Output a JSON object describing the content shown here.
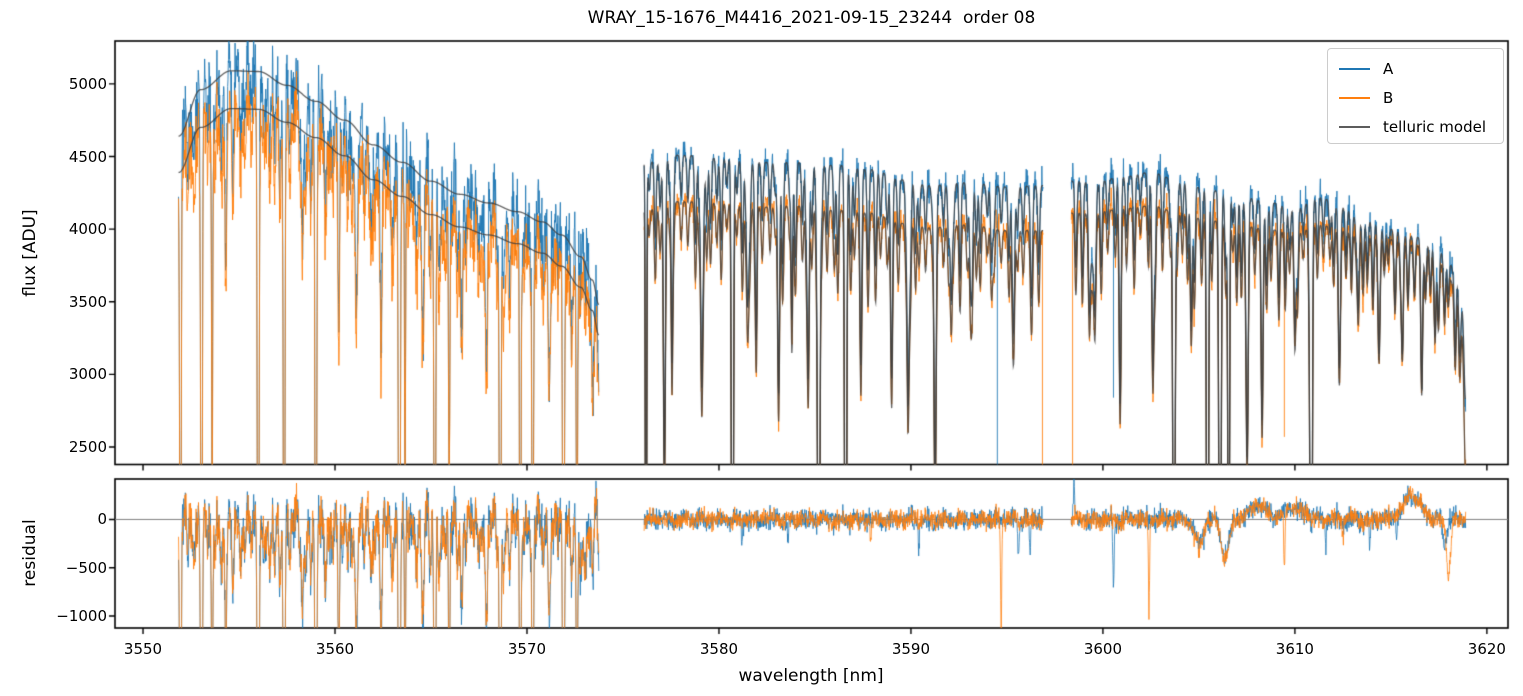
{
  "title": "WRAY_15-1676_M4416_2021-09-15_23244  order 08",
  "legend": {
    "entries": [
      {
        "label": "A",
        "color": "#1f77b4"
      },
      {
        "label": "B",
        "color": "#ff7f0e"
      },
      {
        "label": "telluric model",
        "color": "#5c5c5c"
      }
    ]
  },
  "chart_data": {
    "type": "line",
    "title": "WRAY_15-1676_M4416_2021-09-15_23244  order 08",
    "xlabel": "wavelength [nm]",
    "x_unit": "nm",
    "flux_unit": "ADU",
    "xlim": [
      3548.54,
      3621.1
    ],
    "xticks": [
      3550,
      3560,
      3570,
      3580,
      3590,
      3600,
      3610,
      3620
    ],
    "panels": [
      {
        "ylabel": "flux [ADU]",
        "ylim": [
          2380,
          5295
        ],
        "yticks": [
          2500,
          3000,
          3500,
          4000,
          4500,
          5000
        ]
      },
      {
        "ylabel": "residual",
        "ylim": [
          -1124,
          419
        ],
        "yticks": [
          0,
          -500,
          -1000
        ],
        "zero_line": true
      }
    ],
    "series": [
      {
        "name": "A",
        "color": "#1f77b4",
        "alpha": 0.88,
        "lw": 1.0
      },
      {
        "name": "B",
        "color": "#ff7f0e",
        "alpha": 0.88,
        "lw": 1.0
      },
      {
        "name": "telluric model",
        "color": "#3c3c3c",
        "alpha": 0.8,
        "lw": 1.3
      }
    ],
    "gaps": [
      [
        3573.75,
        3576.1
      ],
      [
        3596.9,
        3598.35
      ]
    ],
    "seed": 1337,
    "x_step": 0.016,
    "segments": [
      {
        "x_start": 3551.85,
        "x_end": 3573.75,
        "model_has_lines": false,
        "noise_A": 125,
        "noise_B": 112,
        "wiggle": [
          [
            1.15,
            112
          ],
          [
            0.52,
            68
          ],
          [
            0.23,
            40
          ]
        ],
        "env_A": [
          [
            3551.85,
            4640
          ],
          [
            3553.0,
            4960
          ],
          [
            3554.6,
            5090
          ],
          [
            3556.0,
            5085
          ],
          [
            3557.5,
            4990
          ],
          [
            3559.0,
            4880
          ],
          [
            3560.5,
            4750
          ],
          [
            3562.0,
            4580
          ],
          [
            3563.5,
            4460
          ],
          [
            3565.0,
            4330
          ],
          [
            3566.5,
            4240
          ],
          [
            3568.0,
            4180
          ],
          [
            3569.5,
            4120
          ],
          [
            3570.8,
            4050
          ],
          [
            3571.8,
            3960
          ],
          [
            3572.8,
            3810
          ],
          [
            3573.4,
            3650
          ],
          [
            3573.75,
            3480
          ]
        ],
        "env_B": [
          [
            3551.85,
            4390
          ],
          [
            3553.0,
            4700
          ],
          [
            3554.6,
            4830
          ],
          [
            3556.0,
            4825
          ],
          [
            3557.5,
            4735
          ],
          [
            3559.0,
            4630
          ],
          [
            3560.5,
            4505
          ],
          [
            3562.0,
            4340
          ],
          [
            3563.5,
            4225
          ],
          [
            3565.0,
            4100
          ],
          [
            3566.5,
            4015
          ],
          [
            3568.0,
            3960
          ],
          [
            3569.5,
            3900
          ],
          [
            3570.8,
            3835
          ],
          [
            3571.8,
            3745
          ],
          [
            3572.8,
            3600
          ],
          [
            3573.4,
            3440
          ],
          [
            3573.75,
            3270
          ]
        ],
        "lines": [
          [
            3551.95,
            1.0,
            0.035
          ],
          [
            3553.05,
            1.0,
            0.035
          ],
          [
            3553.6,
            0.55,
            0.03
          ],
          [
            3554.3,
            0.15,
            0.05
          ],
          [
            3556.0,
            1.0,
            0.04
          ],
          [
            3557.35,
            1.0,
            0.035
          ],
          [
            3558.3,
            0.16,
            0.05
          ],
          [
            3559.0,
            1.0,
            0.04
          ],
          [
            3560.2,
            0.3,
            0.04
          ],
          [
            3561.1,
            0.22,
            0.05
          ],
          [
            3562.4,
            0.18,
            0.05
          ],
          [
            3563.35,
            1.0,
            0.04
          ],
          [
            3563.65,
            0.5,
            0.03
          ],
          [
            3564.6,
            0.2,
            0.05
          ],
          [
            3565.2,
            1.0,
            0.04
          ],
          [
            3565.95,
            0.5,
            0.035
          ],
          [
            3566.6,
            0.18,
            0.05
          ],
          [
            3567.9,
            0.15,
            0.05
          ],
          [
            3568.6,
            1.0,
            0.04
          ],
          [
            3569.65,
            1.0,
            0.035
          ],
          [
            3570.3,
            0.85,
            0.035
          ],
          [
            3571.15,
            0.2,
            0.05
          ],
          [
            3571.9,
            1.0,
            0.04
          ],
          [
            3572.6,
            0.6,
            0.035
          ]
        ],
        "forest": {
          "spacing": 0.34,
          "dmin": 0.03,
          "dmax": 0.15,
          "w": 0.05
        }
      },
      {
        "x_start": 3576.1,
        "x_end": 3596.9,
        "model_has_lines": true,
        "noise_A": 52,
        "noise_B": 48,
        "wiggle": [
          [
            0.9,
            22
          ]
        ],
        "env_A": [
          [
            3576.1,
            4460
          ],
          [
            3578.0,
            4510
          ],
          [
            3580.0,
            4490
          ],
          [
            3582.0,
            4460
          ],
          [
            3584.0,
            4460
          ],
          [
            3586.0,
            4440
          ],
          [
            3588.0,
            4410
          ],
          [
            3589.5,
            4340
          ],
          [
            3591.0,
            4300
          ],
          [
            3593.0,
            4320
          ],
          [
            3595.0,
            4290
          ],
          [
            3596.9,
            4300
          ]
        ],
        "env_B": [
          [
            3576.1,
            4130
          ],
          [
            3578.0,
            4190
          ],
          [
            3580.0,
            4180
          ],
          [
            3582.0,
            4150
          ],
          [
            3584.0,
            4160
          ],
          [
            3586.0,
            4130
          ],
          [
            3588.0,
            4110
          ],
          [
            3589.5,
            4040
          ],
          [
            3591.0,
            4010
          ],
          [
            3593.0,
            4030
          ],
          [
            3595.0,
            3990
          ],
          [
            3596.9,
            3990
          ]
        ],
        "lines": [
          [
            3576.2,
            1.0,
            0.03
          ],
          [
            3577.15,
            0.34,
            0.05
          ],
          [
            3577.55,
            0.28,
            0.04
          ],
          [
            3579.1,
            0.32,
            0.05
          ],
          [
            3580.7,
            1.0,
            0.045
          ],
          [
            3581.5,
            0.2,
            0.05
          ],
          [
            3581.95,
            0.22,
            0.04
          ],
          [
            3583.1,
            0.28,
            0.05
          ],
          [
            3583.8,
            0.24,
            0.04
          ],
          [
            3584.65,
            0.32,
            0.05
          ],
          [
            3585.2,
            1.0,
            0.05
          ],
          [
            3586.6,
            1.0,
            0.045
          ],
          [
            3587.4,
            0.18,
            0.05
          ],
          [
            3589.0,
            0.27,
            0.05
          ],
          [
            3589.85,
            0.34,
            0.05
          ],
          [
            3591.25,
            0.45,
            0.05
          ],
          [
            3592.1,
            0.18,
            0.05
          ],
          [
            3593.1,
            0.14,
            0.05
          ],
          [
            3594.2,
            0.12,
            0.05
          ],
          [
            3595.3,
            0.14,
            0.05
          ],
          [
            3596.3,
            0.12,
            0.05
          ]
        ],
        "forest": {
          "spacing": 0.3,
          "dmin": 0.04,
          "dmax": 0.16,
          "w": 0.05
        }
      },
      {
        "x_start": 3598.35,
        "x_end": 3618.9,
        "model_has_lines": true,
        "noise_A": 52,
        "noise_B": 48,
        "wiggle": [
          [
            0.9,
            22
          ]
        ],
        "env_A": [
          [
            3598.35,
            4330
          ],
          [
            3599.8,
            4330
          ],
          [
            3601.0,
            4360
          ],
          [
            3602.5,
            4390
          ],
          [
            3604.0,
            4330
          ],
          [
            3605.5,
            4270
          ],
          [
            3607.0,
            4230
          ],
          [
            3608.5,
            4190
          ],
          [
            3610.0,
            4140
          ],
          [
            3611.3,
            4220
          ],
          [
            3612.5,
            4150
          ],
          [
            3613.5,
            4070
          ],
          [
            3615.0,
            4000
          ],
          [
            3616.2,
            3950
          ],
          [
            3617.2,
            3890
          ],
          [
            3617.9,
            3810
          ],
          [
            3618.4,
            3680
          ],
          [
            3618.7,
            3450
          ],
          [
            3618.9,
            2950
          ]
        ],
        "env_B": [
          [
            3598.35,
            4110
          ],
          [
            3599.8,
            4120
          ],
          [
            3601.0,
            4140
          ],
          [
            3602.5,
            4160
          ],
          [
            3604.0,
            4110
          ],
          [
            3605.5,
            4060
          ],
          [
            3607.0,
            4030
          ],
          [
            3608.5,
            4000
          ],
          [
            3610.0,
            3970
          ],
          [
            3611.3,
            4030
          ],
          [
            3612.5,
            3990
          ],
          [
            3613.5,
            3950
          ],
          [
            3615.0,
            3930
          ],
          [
            3616.2,
            3890
          ],
          [
            3617.2,
            3830
          ],
          [
            3617.9,
            3720
          ],
          [
            3618.4,
            3560
          ],
          [
            3618.7,
            3280
          ],
          [
            3618.9,
            2430
          ]
        ],
        "lines": [
          [
            3599.45,
            0.13,
            0.12
          ],
          [
            3600.9,
            0.28,
            0.05
          ],
          [
            3602.6,
            0.3,
            0.05
          ],
          [
            3603.7,
            1.0,
            0.05
          ],
          [
            3604.6,
            0.22,
            0.05
          ],
          [
            3605.45,
            1.0,
            0.045
          ],
          [
            3606.1,
            1.0,
            0.05
          ],
          [
            3606.55,
            0.85,
            0.04
          ],
          [
            3607.5,
            0.3,
            0.06
          ],
          [
            3608.3,
            0.22,
            0.05
          ],
          [
            3610.0,
            0.2,
            0.05
          ],
          [
            3610.85,
            1.0,
            0.05
          ],
          [
            3612.3,
            0.2,
            0.05
          ],
          [
            3613.3,
            0.15,
            0.05
          ],
          [
            3614.4,
            0.16,
            0.05
          ],
          [
            3615.6,
            0.2,
            0.05
          ],
          [
            3616.6,
            0.14,
            0.05
          ],
          [
            3617.3,
            0.16,
            0.05
          ]
        ],
        "forest": {
          "spacing": 0.3,
          "dmin": 0.04,
          "dmax": 0.16,
          "w": 0.05
        }
      }
    ],
    "outliers": [
      {
        "series": "A",
        "x": 3594.5,
        "to": 2200
      },
      {
        "series": "B",
        "x": 3596.85,
        "to": 2200
      },
      {
        "series": "B",
        "x": 3598.42,
        "to": 2200
      },
      {
        "series": "A",
        "x": 3600.55,
        "to": 2840
      },
      {
        "series": "B",
        "x": 3609.45,
        "to": 2570
      }
    ],
    "residual_extras": [
      {
        "s": "AB",
        "x": 3572.9,
        "a": -420,
        "w": 0.25
      },
      {
        "s": "AB",
        "x": 3573.5,
        "a": 250,
        "w": 0.15
      },
      {
        "s": "A",
        "x": 3581.2,
        "a": -260,
        "w": 0.03
      },
      {
        "s": "A",
        "x": 3583.6,
        "a": -300,
        "w": 0.03
      },
      {
        "s": "B",
        "x": 3587.9,
        "a": -220,
        "w": 0.03
      },
      {
        "s": "A",
        "x": 3590.4,
        "a": -330,
        "w": 0.03
      },
      {
        "s": "B",
        "x": 3594.7,
        "a": -1150,
        "w": 0.03
      },
      {
        "s": "A",
        "x": 3595.6,
        "a": -430,
        "w": 0.03
      },
      {
        "s": "A",
        "x": 3596.2,
        "a": -380,
        "w": 0.03
      },
      {
        "s": "A",
        "x": 3598.5,
        "a": 420,
        "w": 0.03
      },
      {
        "s": "A",
        "x": 3600.55,
        "a": -700,
        "w": 0.035
      },
      {
        "s": "B",
        "x": 3602.4,
        "a": -950,
        "w": 0.03
      },
      {
        "s": "AB",
        "x": 3605.0,
        "a": -280,
        "w": 0.22
      },
      {
        "s": "AB",
        "x": 3606.35,
        "a": -400,
        "w": 0.2
      },
      {
        "s": "AB",
        "x": 3608.1,
        "a": 150,
        "w": 0.4
      },
      {
        "s": "AB",
        "x": 3609.9,
        "a": 120,
        "w": 0.5
      },
      {
        "s": "B",
        "x": 3609.45,
        "a": -620,
        "w": 0.035
      },
      {
        "s": "A",
        "x": 3611.6,
        "a": -280,
        "w": 0.03
      },
      {
        "s": "B",
        "x": 3612.5,
        "a": -200,
        "w": 0.03
      },
      {
        "s": "A",
        "x": 3613.9,
        "a": -300,
        "w": 0.03
      },
      {
        "s": "A",
        "x": 3615.3,
        "a": -250,
        "w": 0.03
      },
      {
        "s": "AB",
        "x": 3616.1,
        "a": 250,
        "w": 0.45
      },
      {
        "s": "A",
        "x": 3617.8,
        "a": -280,
        "w": 0.1
      },
      {
        "s": "B",
        "x": 3618.0,
        "a": -560,
        "w": 0.1
      }
    ]
  }
}
